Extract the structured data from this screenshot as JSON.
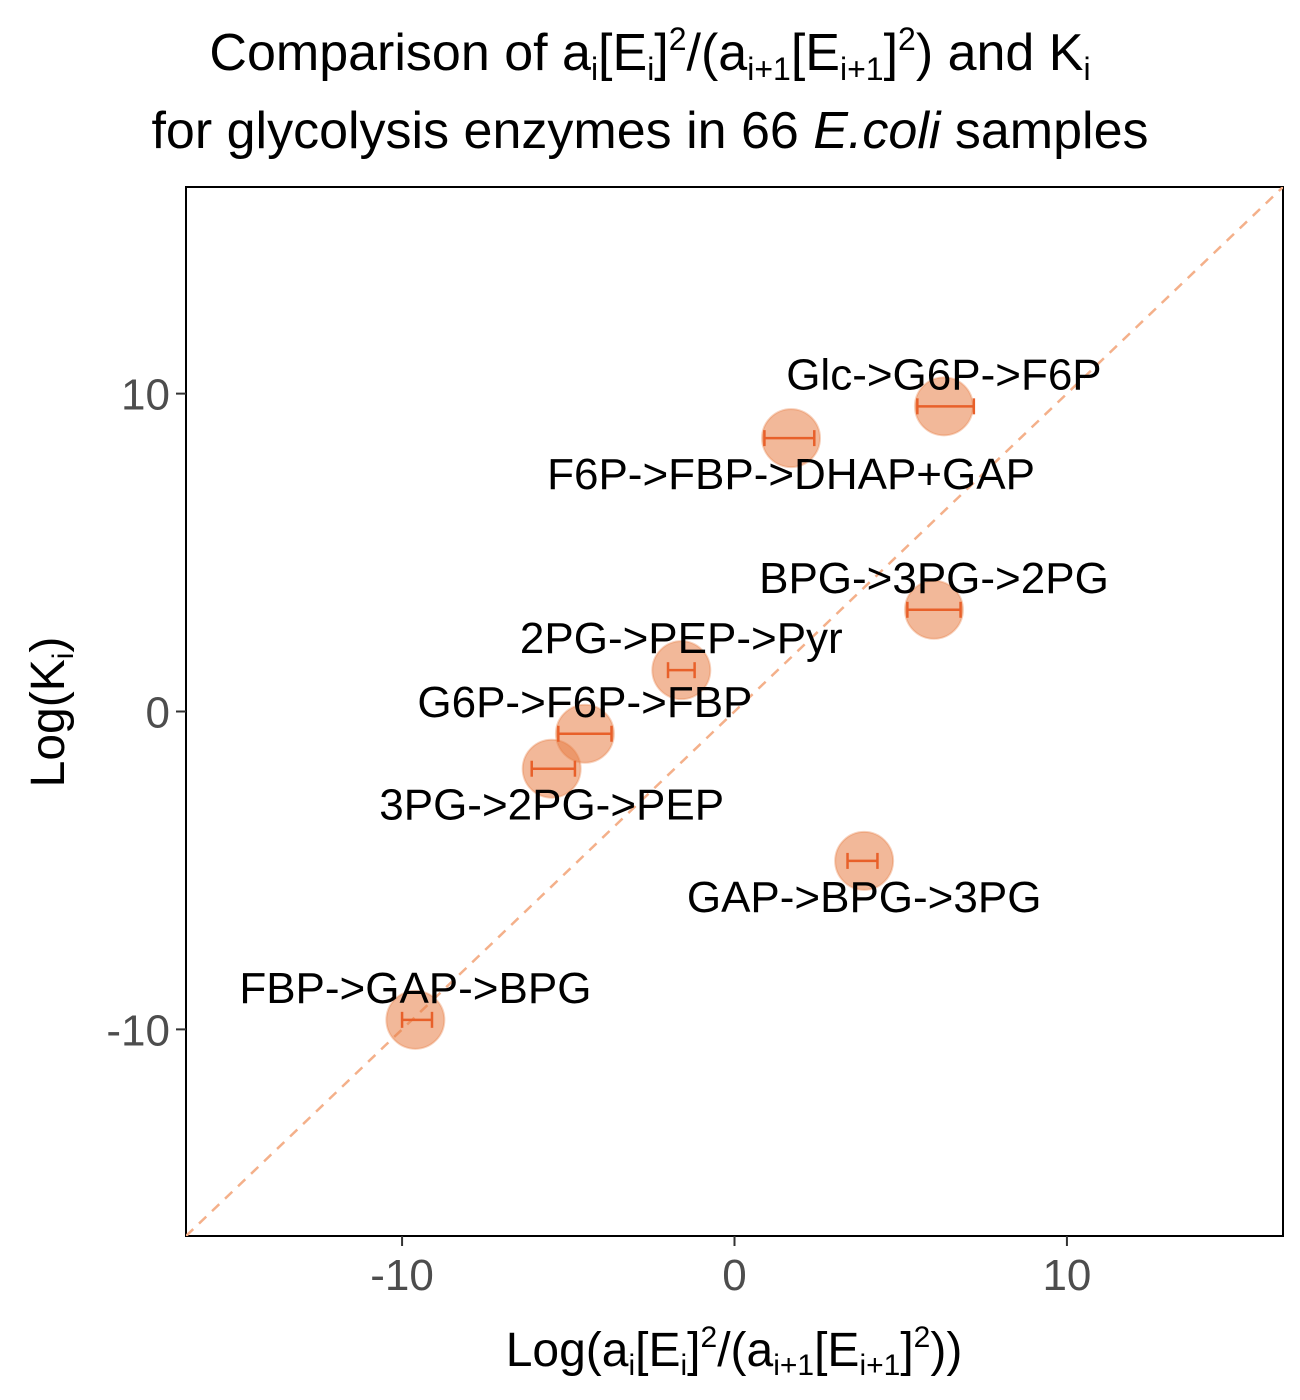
{
  "chart_data": {
    "type": "scatter",
    "title_line1": {
      "prefix": "Comparison of a",
      "sub1": "i",
      "part2": "[E",
      "sub2": "i",
      "part3": "]",
      "sup1": "2",
      "part4": "/(a",
      "sub3": "i+1",
      "part5": "[E",
      "sub4": "i+1",
      "part6": "]",
      "sup2": "2",
      "part7": ") and K",
      "sub5": "i"
    },
    "title_line2": {
      "prefix": "for glycolysis enzymes in 66 ",
      "italic": "E.coli",
      "suffix": " samples"
    },
    "xlabel": {
      "prefix": "Log(a",
      "sub1": "i",
      "part2": "[E",
      "sub2": "i",
      "part3": "]",
      "sup1": "2",
      "part4": "/(a",
      "sub3": "i+1",
      "part5": "[E",
      "sub4": "i+1",
      "part6": "]",
      "sup2": "2",
      "part7": "))"
    },
    "ylabel": {
      "prefix": "Log(K",
      "sub1": "i",
      "suffix": ")"
    },
    "xlim": [
      -16.5,
      16.5
    ],
    "ylim": [
      -16.5,
      16.5
    ],
    "xticks": [
      {
        "value": -10,
        "label": "-10"
      },
      {
        "value": 0,
        "label": "0"
      },
      {
        "value": 10,
        "label": "10"
      }
    ],
    "yticks": [
      {
        "value": 10,
        "label": "10"
      },
      {
        "value": 0,
        "label": "0"
      },
      {
        "value": -10,
        "label": "-10"
      }
    ],
    "reference_line": {
      "type": "identity",
      "style": "dashed",
      "color": "#f4b08a"
    },
    "grid": false,
    "colors": {
      "point_fill": "#e87d45",
      "point_stroke": "#e87d45",
      "errorbar": "#e8602a"
    },
    "points": [
      {
        "label": "Glc->G6P->F6P",
        "x": 6.3,
        "y": 9.6,
        "xerr_low": 5.5,
        "xerr_high": 7.2,
        "label_pos": "above"
      },
      {
        "label": "F6P->FBP->DHAP+GAP",
        "x": 1.7,
        "y": 8.6,
        "xerr_low": 0.9,
        "xerr_high": 2.4,
        "label_pos": "below"
      },
      {
        "label": "BPG->3PG->2PG",
        "x": 6.0,
        "y": 3.2,
        "xerr_low": 5.2,
        "xerr_high": 6.8,
        "label_pos": "above"
      },
      {
        "label": "2PG->PEP->Pyr",
        "x": -1.6,
        "y": 1.3,
        "xerr_low": -2.0,
        "xerr_high": -1.2,
        "label_pos": "above"
      },
      {
        "label": "G6P->F6P->FBP",
        "x": -4.5,
        "y": -0.7,
        "xerr_low": -5.3,
        "xerr_high": -3.7,
        "label_pos": "above"
      },
      {
        "label": "3PG->2PG->PEP",
        "x": -5.5,
        "y": -1.8,
        "xerr_low": -6.1,
        "xerr_high": -4.8,
        "label_pos": "below"
      },
      {
        "label": "GAP->BPG->3PG",
        "x": 3.9,
        "y": -4.7,
        "xerr_low": 3.4,
        "xerr_high": 4.3,
        "label_pos": "below"
      },
      {
        "label": "FBP->GAP->BPG",
        "x": -9.6,
        "y": -9.7,
        "xerr_low": -10.0,
        "xerr_high": -9.1,
        "label_pos": "above"
      }
    ]
  }
}
